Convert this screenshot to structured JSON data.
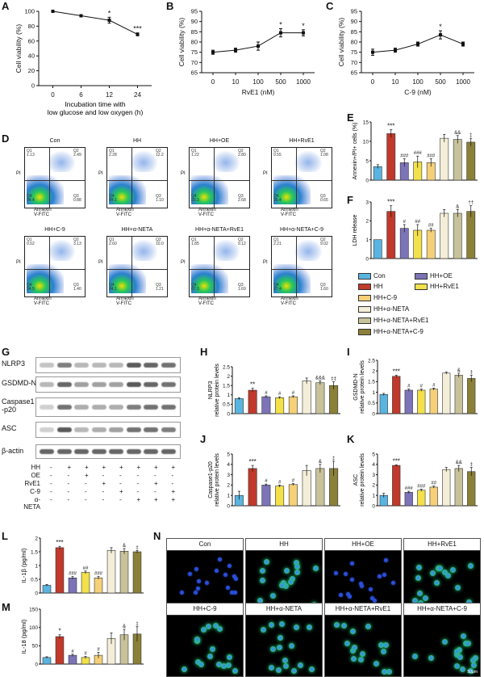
{
  "panel_letters": [
    "A",
    "B",
    "C",
    "D",
    "E",
    "F",
    "G",
    "H",
    "I",
    "J",
    "K",
    "L",
    "M",
    "N"
  ],
  "colors": {
    "con": "#5ab4e0",
    "hh": "#c0392b",
    "hh_oe": "#7d73b8",
    "hh_rve1": "#f2e14a",
    "hh_c9": "#f5d078",
    "hh_anet": "#f4eed8",
    "hh_anet_rve1": "#c8c29a",
    "hh_anet_c9": "#8b8038"
  },
  "legend": [
    "Con",
    "HH+OE",
    "HH",
    "HH+RvE1",
    "HH+C-9",
    "HH+α-NETA",
    "HH+α-NETA+RvE1",
    "HH+α-NETA+C-9"
  ],
  "flow": {
    "xlabel": "Annexin V-FITC",
    "ylabel": "PI",
    "plots": [
      {
        "title": "Con",
        "q1": "Q1\n1.13",
        "q2": "Q2\n2.49",
        "q4": "Q4\n94.4",
        "q3": "Q3\n0.88"
      },
      {
        "title": "HH",
        "q1": "Q1\n2.28",
        "q2": "Q2\n12.2",
        "q4": "Q4\n84.1",
        "q3": "Q3\n1.10"
      },
      {
        "title": "HH+OE",
        "q1": "Q1\n1.22",
        "q2": "Q2\n2.80",
        "q4": "Q4\n93.3",
        "q3": "Q3\n2.68"
      },
      {
        "title": "HH+RvE1",
        "q1": "Q1\n0.55",
        "q2": "Q2\n1.08",
        "q4": "Q4\n95.4",
        "q3": "Q3\n0.65"
      },
      {
        "title": "HH+C-9",
        "q1": "Q1\n0.52",
        "q2": "Q2\n3.13",
        "q4": "Q4\n94.9",
        "q3": "Q3\n1.40"
      },
      {
        "title": "HH+α-NETA",
        "q1": "Q1\n2.60",
        "q2": "Q2\n10.0",
        "q4": "Q4\n84.1",
        "q3": "Q3\n1.21"
      },
      {
        "title": "HH+α-NETA+RvE1",
        "q1": "Q1\n1.85",
        "q2": "Q2\n9.12",
        "q4": "Q4\n87.3",
        "q3": "Q3\n1.69"
      },
      {
        "title": "HH+α-NETA+C-9",
        "q1": "Q1\n2.21",
        "q2": "Q2\n9.02",
        "q4": "Q4\n87.4",
        "q3": "Q3\n1.60"
      }
    ]
  },
  "western": {
    "bands": [
      "NLRP3",
      "GSDMD-N",
      "Caspase1\n-p20",
      "ASC",
      "β-actin"
    ],
    "conditions": [
      {
        "label": "HH",
        "signs": [
          "-",
          "+",
          "+",
          "+",
          "+",
          "+",
          "+",
          "+"
        ]
      },
      {
        "label": "OE",
        "signs": [
          "-",
          "-",
          "+",
          "-",
          "-",
          "-",
          "-",
          "-"
        ]
      },
      {
        "label": "RvE1",
        "signs": [
          "-",
          "-",
          "-",
          "+",
          "-",
          "-",
          "+",
          "-"
        ]
      },
      {
        "label": "C-9",
        "signs": [
          "-",
          "-",
          "-",
          "-",
          "+",
          "-",
          "-",
          "+"
        ]
      },
      {
        "label": "α-NETA",
        "signs": [
          "-",
          "-",
          "-",
          "-",
          "-",
          "+",
          "+",
          "+"
        ]
      }
    ]
  },
  "fluor": {
    "titles": [
      "Con",
      "HH",
      "HH+OE",
      "HH+RvE1",
      "HH+C-9",
      "HH+α-NETA",
      "HH+α-NETA+RvE1",
      "HH+α-NETA+C-9"
    ],
    "scale": "50μm"
  },
  "chart_data": [
    {
      "id": "A",
      "type": "line",
      "xlabel": "Incubation time with low glucose and low oxygen (h)",
      "ylabel": "Cell viability (%)",
      "x": [
        "0",
        "6",
        "12",
        "24"
      ],
      "values": [
        100,
        94,
        88,
        69
      ],
      "errors": [
        1,
        1.5,
        4,
        2
      ],
      "ylim": [
        0,
        100
      ],
      "yticks": [
        0,
        20,
        40,
        60,
        80,
        100
      ],
      "annotations": [
        "",
        "",
        "*",
        "***"
      ]
    },
    {
      "id": "B",
      "type": "line",
      "xlabel": "RvE1 (nM)",
      "ylabel": "Cell viability (%)",
      "x": [
        "0",
        "10",
        "100",
        "500",
        "1000"
      ],
      "values": [
        75,
        76,
        78,
        84.5,
        84.5
      ],
      "errors": [
        1,
        1,
        2,
        2,
        1.5
      ],
      "ylim": [
        65,
        95
      ],
      "yticks": [
        65,
        70,
        75,
        80,
        85,
        90,
        95
      ],
      "annotations": [
        "",
        "",
        "",
        "*",
        "*"
      ]
    },
    {
      "id": "C",
      "type": "line",
      "xlabel": "C-9 (nM)",
      "ylabel": "Cell viability (%)",
      "x": [
        "0",
        "10",
        "100",
        "500",
        "1000"
      ],
      "values": [
        75,
        76,
        79,
        83.5,
        79
      ],
      "errors": [
        1.5,
        1,
        1,
        2,
        1
      ],
      "ylim": [
        65,
        95
      ],
      "yticks": [
        65,
        70,
        75,
        80,
        85,
        90,
        95
      ],
      "annotations": [
        "",
        "",
        "",
        "*",
        ""
      ]
    },
    {
      "id": "E",
      "type": "bar",
      "ylabel": "Annexin+/PI+ cells (%)",
      "ylim": [
        0,
        15
      ],
      "yticks": [
        0,
        5,
        10,
        15
      ],
      "values": [
        3.5,
        12,
        4.5,
        4.7,
        4.5,
        10.8,
        10.5,
        9.8
      ],
      "errors": [
        0.5,
        1,
        1,
        1.5,
        1,
        1,
        1,
        1
      ],
      "annotations": [
        "",
        "***",
        "###",
        "###",
        "###",
        "",
        "&&",
        "‡"
      ]
    },
    {
      "id": "F",
      "type": "bar",
      "ylabel": "LDH release",
      "ylim": [
        0,
        3
      ],
      "yticks": [
        0,
        1,
        2,
        3
      ],
      "values": [
        1,
        2.5,
        1.6,
        1.5,
        1.5,
        2.4,
        2.4,
        2.5
      ],
      "errors": [
        0,
        0.3,
        0.2,
        0.3,
        0.1,
        0.2,
        0.2,
        0.3
      ],
      "annotations": [
        "",
        "***",
        "#",
        "##",
        "##",
        "",
        "&",
        "††"
      ]
    },
    {
      "id": "H",
      "type": "bar",
      "ylabel": "NLRP3 relative protein levels",
      "ylim": [
        0,
        2.5
      ],
      "yticks": [
        0,
        0.5,
        1,
        1.5,
        2,
        2.5
      ],
      "values": [
        0.8,
        1.25,
        0.9,
        0.85,
        0.9,
        1.75,
        1.65,
        1.5
      ],
      "errors": [
        0.05,
        0.1,
        0.05,
        0.05,
        0.05,
        0.15,
        0.1,
        0.2
      ],
      "annotations": [
        "",
        "**",
        "#",
        "#",
        "#",
        "",
        "&&&",
        "‡‡"
      ]
    },
    {
      "id": "I",
      "type": "bar",
      "ylabel": "GSDMD-N relative protein levels",
      "ylim": [
        0,
        2.5
      ],
      "yticks": [
        0,
        0.5,
        1,
        1.5,
        2,
        2.5
      ],
      "values": [
        0.9,
        1.75,
        1.1,
        1.1,
        1.15,
        1.9,
        1.8,
        1.65
      ],
      "errors": [
        0.05,
        0.05,
        0.05,
        0.05,
        0.05,
        0.05,
        0.1,
        0.15
      ],
      "annotations": [
        "",
        "***",
        "#",
        "#",
        "#",
        "",
        "&",
        "‡"
      ]
    },
    {
      "id": "J",
      "type": "bar",
      "ylabel": "Caspase1-p20 relative protein levels",
      "ylim": [
        0,
        5
      ],
      "yticks": [
        0,
        1,
        2,
        3,
        4,
        5
      ],
      "values": [
        1,
        3.6,
        2,
        1.9,
        2.05,
        3.4,
        3.6,
        3.6
      ],
      "errors": [
        0.4,
        0.3,
        0.1,
        0.1,
        0.1,
        0.5,
        0.4,
        0.7
      ],
      "annotations": [
        "",
        "***",
        "#",
        "#",
        "#",
        "",
        "&",
        "‡"
      ]
    },
    {
      "id": "K",
      "type": "bar",
      "ylabel": "ASC relative protein levels",
      "ylim": [
        0,
        5
      ],
      "yticks": [
        0,
        1,
        2,
        3,
        4,
        5
      ],
      "values": [
        1,
        3.9,
        1.3,
        1.5,
        1.8,
        3.5,
        3.6,
        3.3
      ],
      "errors": [
        0.2,
        0.05,
        0.1,
        0.1,
        0.1,
        0.2,
        0.3,
        0.4
      ],
      "annotations": [
        "",
        "***",
        "###",
        "###",
        "##",
        "",
        "&&",
        "‡"
      ]
    },
    {
      "id": "L",
      "type": "bar",
      "ylabel": "IL-1β (pg/ml)",
      "ylim": [
        0,
        2
      ],
      "yticks": [
        0,
        0.5,
        1,
        1.5,
        2
      ],
      "values": [
        0.28,
        1.65,
        0.55,
        0.75,
        0.55,
        1.55,
        1.52,
        1.5
      ],
      "errors": [
        0.03,
        0.05,
        0.05,
        0.05,
        0.05,
        0.1,
        0.1,
        0.05
      ],
      "annotations": [
        "",
        "***",
        "###",
        "##",
        "###",
        "",
        "&",
        "‡"
      ]
    },
    {
      "id": "M",
      "type": "bar",
      "ylabel": "IL-18 (pg/ml)",
      "ylim": [
        0,
        150
      ],
      "yticks": [
        0,
        50,
        100,
        150
      ],
      "values": [
        18,
        75,
        24,
        18,
        24,
        70,
        80,
        82
      ],
      "errors": [
        2,
        5,
        3,
        3,
        8,
        15,
        15,
        20
      ],
      "annotations": [
        "",
        "*",
        "#",
        "#",
        "#",
        "",
        "&",
        "‡"
      ]
    }
  ]
}
